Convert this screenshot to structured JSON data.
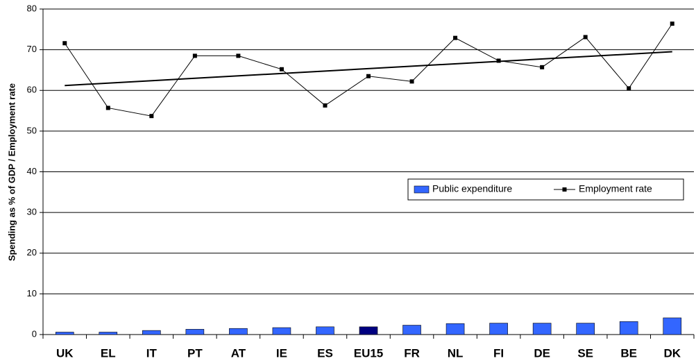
{
  "chart_data": {
    "type": "bar-line",
    "y_label": "Spending as % of GDP / Employment rate",
    "categories": [
      "UK",
      "EL",
      "IT",
      "PT",
      "AT",
      "IE",
      "ES",
      "EU15",
      "FR",
      "NL",
      "FI",
      "DE",
      "SE",
      "BE",
      "DK"
    ],
    "series": [
      {
        "name": "Public expenditure",
        "type": "bar",
        "color": "#3366ff",
        "colors": [
          "#3366ff",
          "#3366ff",
          "#3366ff",
          "#3366ff",
          "#3366ff",
          "#3366ff",
          "#3366ff",
          "#000080",
          "#3366ff",
          "#3366ff",
          "#3366ff",
          "#3366ff",
          "#3366ff",
          "#3366ff",
          "#3366ff"
        ],
        "values": [
          0.6,
          0.6,
          1.0,
          1.3,
          1.5,
          1.7,
          1.9,
          1.9,
          2.3,
          2.7,
          2.8,
          2.8,
          2.8,
          3.2,
          4.1
        ]
      },
      {
        "name": "Employment rate",
        "type": "line",
        "color": "#000000",
        "values": [
          71.6,
          55.7,
          53.7,
          68.5,
          68.5,
          65.2,
          56.3,
          63.5,
          62.2,
          72.9,
          67.3,
          65.7,
          73.1,
          60.5,
          76.4
        ],
        "trend": [
          61.2,
          69.5
        ]
      }
    ],
    "ylim": [
      0,
      80
    ],
    "yticks": [
      0,
      10,
      20,
      30,
      40,
      50,
      60,
      70,
      80
    ],
    "grid": true
  }
}
